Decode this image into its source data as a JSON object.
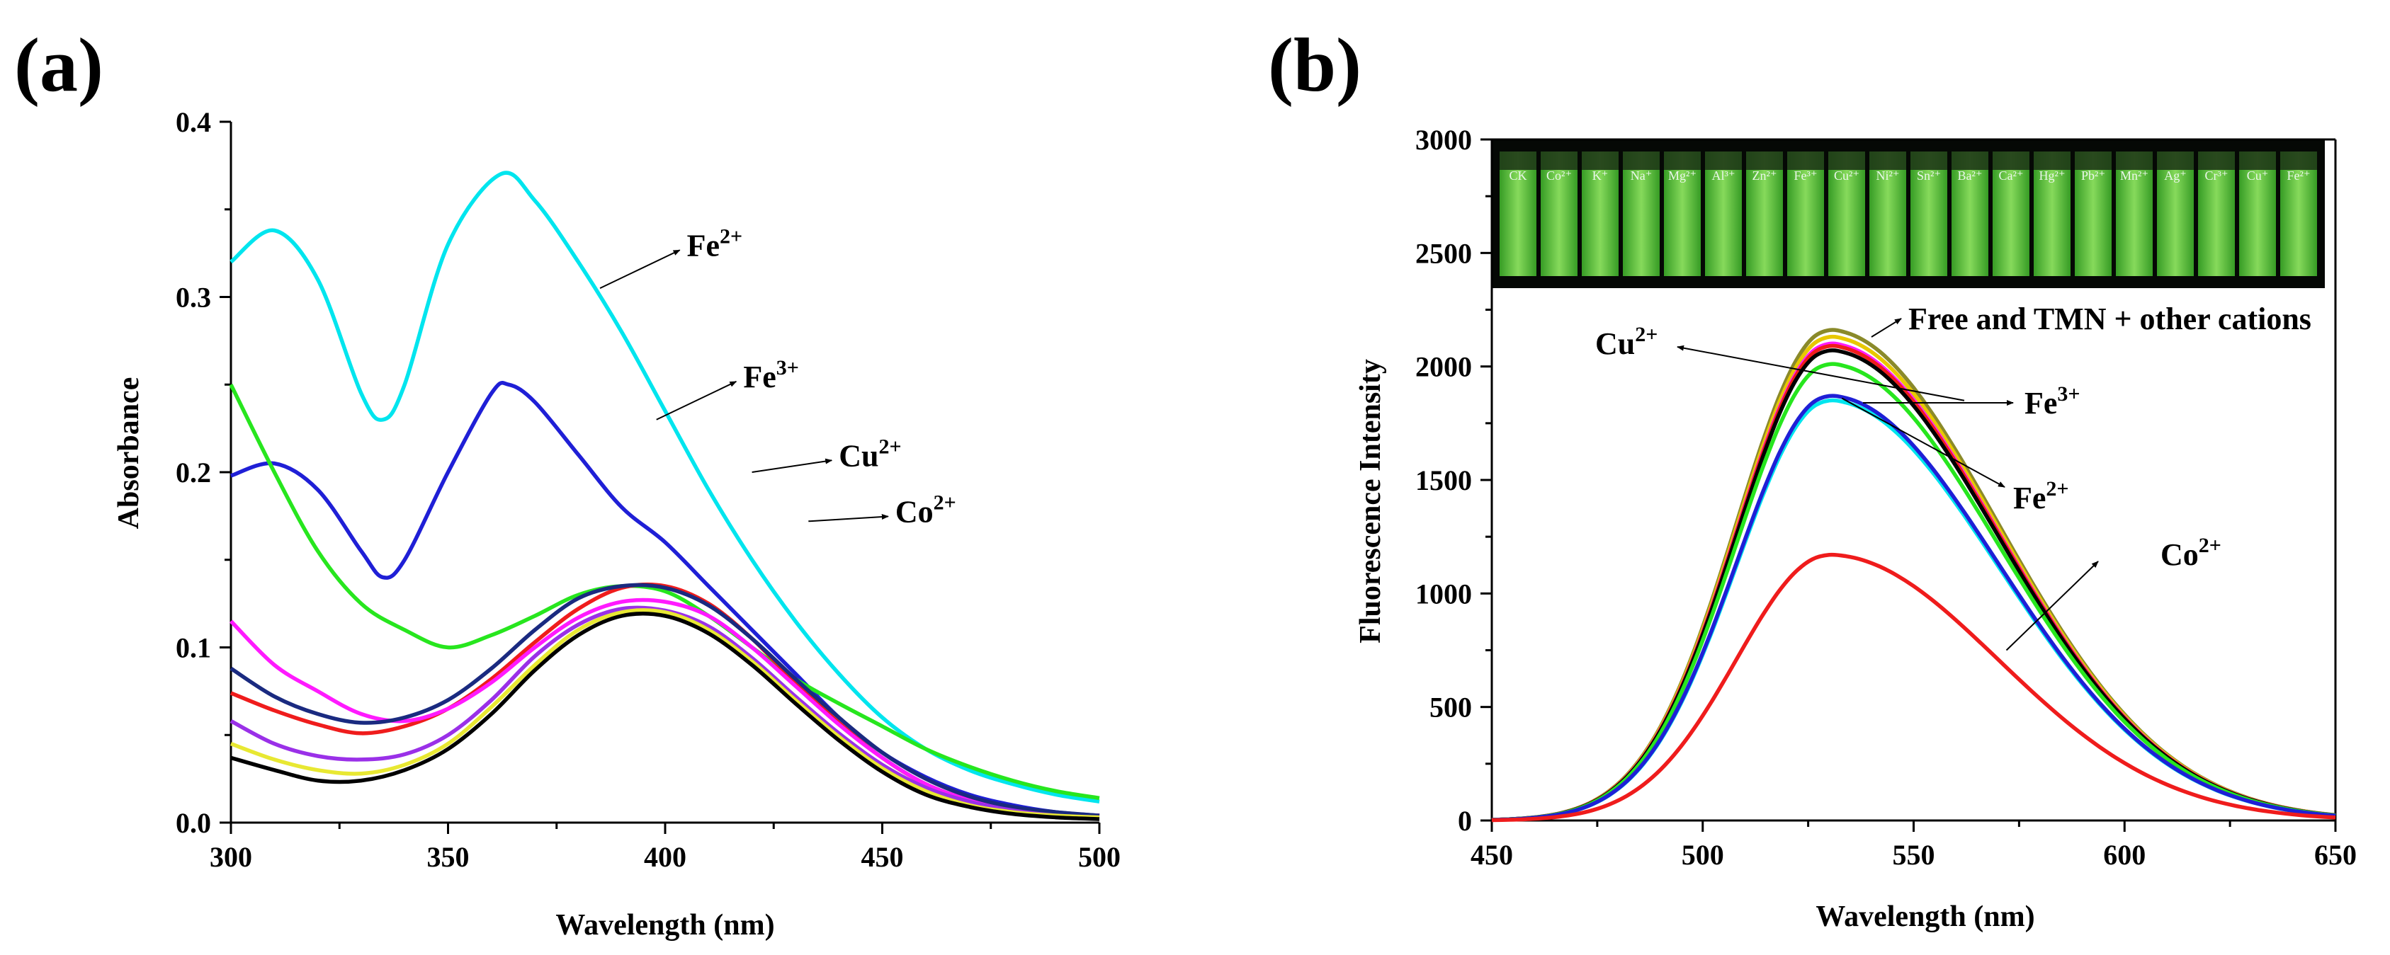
{
  "colors": {
    "cyan": "#00e5ee",
    "blue": "#1f1fd6",
    "green": "#27e61e",
    "red": "#ef1c1c",
    "magenta": "#ff1aff",
    "navy": "#1a2a80",
    "black": "#000000",
    "photo_bg": "#050805",
    "photo_glow": "#6cff3a"
  },
  "chart_data": [
    {
      "id": "a",
      "type": "line",
      "panel_label": "(a)",
      "xlabel": "Wavelength (nm)",
      "ylabel": "Absorbance",
      "xlim": [
        300,
        500
      ],
      "ylim": [
        0.0,
        0.4
      ],
      "xticks": [
        "300",
        "350",
        "400",
        "450",
        "500"
      ],
      "yticks": [
        "0.0",
        "0.1",
        "0.2",
        "0.3",
        "0.4"
      ],
      "series": [
        {
          "name": "Fe2+",
          "color": "#00e5ee",
          "x": [
            300,
            310,
            320,
            330,
            335,
            340,
            350,
            362,
            370,
            380,
            390,
            400,
            410,
            420,
            430,
            440,
            450,
            460,
            470,
            480,
            490,
            500
          ],
          "y": [
            0.32,
            0.338,
            0.31,
            0.245,
            0.23,
            0.25,
            0.33,
            0.37,
            0.355,
            0.32,
            0.28,
            0.235,
            0.19,
            0.15,
            0.115,
            0.085,
            0.06,
            0.042,
            0.03,
            0.022,
            0.016,
            0.012
          ]
        },
        {
          "name": "Fe3+",
          "color": "#1f1fd6",
          "x": [
            300,
            310,
            320,
            330,
            335,
            340,
            350,
            360,
            364,
            370,
            380,
            390,
            400,
            410,
            420,
            430,
            440,
            450,
            460,
            470,
            480,
            490,
            500
          ],
          "y": [
            0.198,
            0.205,
            0.19,
            0.155,
            0.14,
            0.15,
            0.2,
            0.245,
            0.25,
            0.24,
            0.21,
            0.18,
            0.16,
            0.135,
            0.11,
            0.085,
            0.06,
            0.04,
            0.026,
            0.016,
            0.01,
            0.006,
            0.004
          ]
        },
        {
          "name": "Cu2+",
          "color": "#27e61e",
          "x": [
            300,
            310,
            320,
            330,
            340,
            350,
            360,
            370,
            380,
            390,
            400,
            410,
            420,
            430,
            440,
            450,
            460,
            470,
            480,
            490,
            500
          ],
          "y": [
            0.25,
            0.2,
            0.155,
            0.125,
            0.11,
            0.1,
            0.107,
            0.118,
            0.13,
            0.135,
            0.132,
            0.118,
            0.1,
            0.082,
            0.068,
            0.055,
            0.042,
            0.032,
            0.024,
            0.018,
            0.014
          ]
        },
        {
          "name": "Co2+",
          "color": "#ef1c1c",
          "x": [
            300,
            310,
            320,
            330,
            340,
            350,
            360,
            370,
            380,
            390,
            400,
            410,
            420,
            430,
            440,
            450,
            460,
            470,
            480,
            490,
            500
          ],
          "y": [
            0.074,
            0.064,
            0.056,
            0.051,
            0.055,
            0.065,
            0.082,
            0.103,
            0.122,
            0.134,
            0.135,
            0.125,
            0.105,
            0.08,
            0.057,
            0.037,
            0.022,
            0.013,
            0.008,
            0.005,
            0.004
          ]
        },
        {
          "name": "Free and TMN + other cations (1)",
          "color": "#ff1aff",
          "x": [
            300,
            310,
            320,
            330,
            340,
            350,
            360,
            370,
            380,
            390,
            400,
            410,
            420,
            430,
            440,
            450,
            460,
            470,
            480,
            490,
            500
          ],
          "y": [
            0.115,
            0.09,
            0.075,
            0.062,
            0.058,
            0.065,
            0.08,
            0.1,
            0.117,
            0.126,
            0.126,
            0.118,
            0.1,
            0.078,
            0.056,
            0.037,
            0.022,
            0.013,
            0.008,
            0.005,
            0.004
          ]
        },
        {
          "name": "Free and TMN + other cations (2)",
          "color": "#1a2a80",
          "x": [
            300,
            310,
            320,
            330,
            340,
            350,
            360,
            370,
            380,
            390,
            400,
            410,
            420,
            430,
            440,
            450,
            460,
            470,
            480,
            490,
            500
          ],
          "y": [
            0.088,
            0.072,
            0.062,
            0.057,
            0.06,
            0.07,
            0.088,
            0.11,
            0.128,
            0.135,
            0.134,
            0.124,
            0.105,
            0.082,
            0.06,
            0.04,
            0.025,
            0.015,
            0.009,
            0.006,
            0.004
          ]
        },
        {
          "name": "Free and TMN + other cations (3)",
          "color": "#9a30e8",
          "x": [
            300,
            310,
            320,
            330,
            340,
            350,
            360,
            370,
            380,
            390,
            400,
            410,
            420,
            430,
            440,
            450,
            460,
            470,
            480,
            490,
            500
          ],
          "y": [
            0.058,
            0.045,
            0.038,
            0.036,
            0.039,
            0.05,
            0.07,
            0.095,
            0.113,
            0.122,
            0.121,
            0.112,
            0.094,
            0.072,
            0.051,
            0.033,
            0.02,
            0.012,
            0.007,
            0.004,
            0.003
          ]
        },
        {
          "name": "Free and TMN + other cations (4)",
          "color": "#e8e832",
          "x": [
            300,
            310,
            320,
            330,
            340,
            350,
            360,
            370,
            380,
            390,
            400,
            410,
            420,
            430,
            440,
            450,
            460,
            470,
            480,
            490,
            500
          ],
          "y": [
            0.045,
            0.036,
            0.03,
            0.028,
            0.033,
            0.045,
            0.066,
            0.09,
            0.11,
            0.12,
            0.12,
            0.11,
            0.092,
            0.07,
            0.049,
            0.031,
            0.018,
            0.01,
            0.006,
            0.004,
            0.003
          ]
        },
        {
          "name": "Free and TMN + other cations (5)",
          "color": "#000000",
          "x": [
            300,
            310,
            320,
            330,
            340,
            350,
            360,
            370,
            380,
            390,
            400,
            410,
            420,
            430,
            440,
            450,
            460,
            470,
            480,
            490,
            500
          ],
          "y": [
            0.037,
            0.03,
            0.024,
            0.024,
            0.03,
            0.042,
            0.062,
            0.087,
            0.107,
            0.118,
            0.118,
            0.108,
            0.09,
            0.068,
            0.047,
            0.029,
            0.016,
            0.009,
            0.005,
            0.003,
            0.002
          ]
        }
      ],
      "annotations": [
        {
          "base": "Fe",
          "sup": "2+",
          "x_tip": 385,
          "y_tip": 0.305,
          "x_text": 405,
          "y_text": 0.33
        },
        {
          "base": "Fe",
          "sup": "3+",
          "x_tip": 398,
          "y_tip": 0.23,
          "x_text": 418,
          "y_text": 0.255
        },
        {
          "base": "Cu",
          "sup": "2+",
          "x_tip": 420,
          "y_tip": 0.2,
          "x_text": 440,
          "y_text": 0.21
        },
        {
          "base": "Co",
          "sup": "2+",
          "x_tip": 433,
          "y_tip": 0.172,
          "x_text": 453,
          "y_text": 0.178
        }
      ]
    },
    {
      "id": "b",
      "type": "line",
      "panel_label": "(b)",
      "xlabel": "Wavelength (nm)",
      "ylabel": "Fluorescence Intensity",
      "xlim": [
        450,
        650
      ],
      "ylim": [
        0,
        3000
      ],
      "xticks": [
        "450",
        "500",
        "550",
        "600",
        "650"
      ],
      "yticks": [
        "0",
        "500",
        "1000",
        "1500",
        "2000",
        "2500",
        "3000"
      ],
      "series": [
        {
          "name": "Free and TMN + other cations",
          "color": "#8a8a2a",
          "peak": 2160
        },
        {
          "name": "Free and TMN + other cations",
          "color": "#e8c800",
          "peak": 2130
        },
        {
          "name": "Free and TMN + other cations",
          "color": "#ff1aff",
          "peak": 2100
        },
        {
          "name": "Free and TMN + other cations",
          "color": "#ef1c1c",
          "peak": 2090
        },
        {
          "name": "Free and TMN + other cations",
          "color": "#000000",
          "peak": 2070
        },
        {
          "name": "Cu2+",
          "color": "#27e61e",
          "peak": 2010
        },
        {
          "name": "Fe3+",
          "color": "#00e5ee",
          "peak": 1850
        },
        {
          "name": "Fe2+",
          "color": "#1f1fd6",
          "peak": 1870
        },
        {
          "name": "Co2+",
          "color": "#ef1c1c",
          "peak": 1170
        }
      ],
      "peak_wavelength": 530,
      "annotations": [
        {
          "text": "Free and TMN + other cations"
        },
        {
          "base": "Cu",
          "sup": "2+"
        },
        {
          "base": "Fe",
          "sup": "3+"
        },
        {
          "base": "Fe",
          "sup": "2+"
        },
        {
          "base": "Co",
          "sup": "2+"
        }
      ],
      "inset_photo": {
        "labels": [
          "CK",
          "Co²⁺",
          "K⁺",
          "Na⁺",
          "Mg²⁺",
          "Al³⁺",
          "Zn²⁺",
          "Fe³⁺",
          "Cu²⁺",
          "Ni²⁺",
          "Sn²⁺",
          "Ba²⁺",
          "Ca²⁺",
          "Hg²⁺",
          "Pb²⁺",
          "Mn²⁺",
          "Ag⁺",
          "Cr³⁺",
          "Cu⁺",
          "Fe²⁺"
        ]
      }
    }
  ]
}
